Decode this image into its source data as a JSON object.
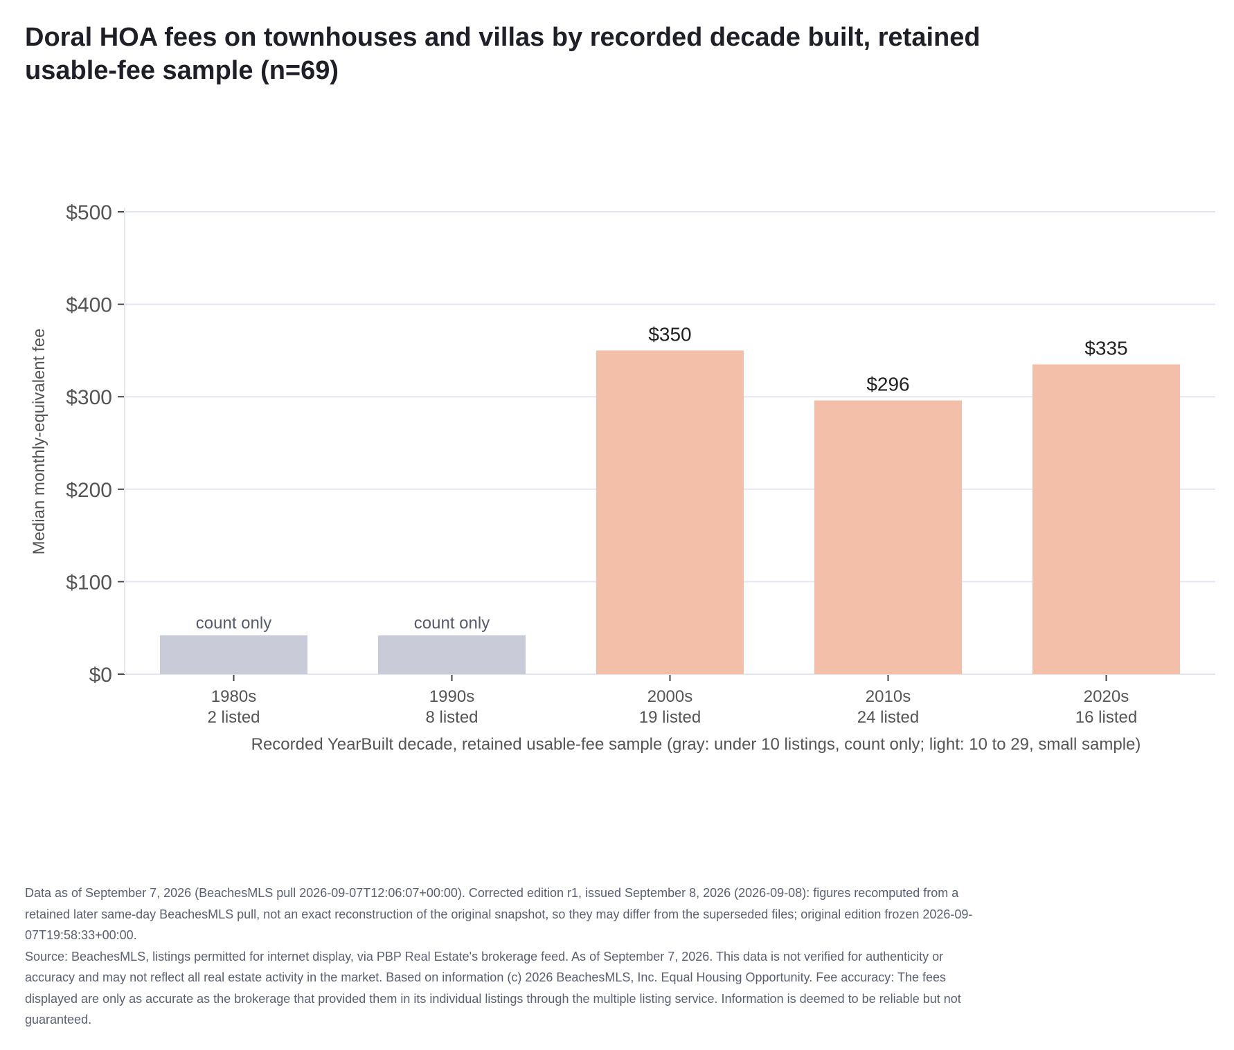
{
  "title": "Doral HOA fees on townhouses and villas by recorded decade built, retained usable-fee sample (n=69)",
  "colors": {
    "count_only_bar": "#c9ccd8",
    "small_sample_bar": "#f4bfa8",
    "gridline": "#e3e5f0",
    "axis_text": "#555555",
    "label_text": "#222222",
    "count_only_text": "#555a6e"
  },
  "chart_data": {
    "type": "bar",
    "title": "Doral HOA fees on townhouses and villas by recorded decade built, retained usable-fee sample (n=69)",
    "xlabel": "Recorded YearBuilt decade, retained usable-fee sample (gray: under 10 listings, count only; light: 10 to 29, small sample)",
    "ylabel": "Median monthly-equivalent fee",
    "ylim": [
      0,
      500
    ],
    "yticks": [
      0,
      100,
      200,
      300,
      400,
      500
    ],
    "ytick_labels": [
      "$0",
      "$100",
      "$200",
      "$300",
      "$400",
      "$500"
    ],
    "grid": true,
    "categories": [
      "1980s",
      "1990s",
      "2000s",
      "2010s",
      "2020s"
    ],
    "category_counts": [
      "2 listed",
      "8 listed",
      "19 listed",
      "24 listed",
      "16 listed"
    ],
    "values": [
      null,
      null,
      350,
      296,
      335
    ],
    "data_labels": [
      "count only",
      "count only",
      "$350",
      "$296",
      "$335"
    ],
    "tier": [
      "count only",
      "count only",
      "small sample",
      "small sample",
      "small sample"
    ],
    "count_only_bar_value": 42
  },
  "notes": {
    "data_as_of": "Data as of September 7, 2026 (BeachesMLS pull 2026-09-07T12:06:07+00:00). Corrected edition r1, issued September 8, 2026 (2026-09-08): figures recomputed from a retained later same-day BeachesMLS pull, not an exact reconstruction of the original snapshot, so they may differ from the superseded files; original edition frozen 2026-09-07T19:58:33+00:00.",
    "source": "Source: BeachesMLS, listings permitted for internet display, via PBP Real Estate's brokerage feed. As of September 7, 2026. This data is not verified for authenticity or accuracy and may not reflect all real estate activity in the market. Based on information (c) 2026 BeachesMLS, Inc. Equal Housing Opportunity. Fee accuracy: The fees displayed are only as accurate as the brokerage that provided them in its individual listings through the multiple listing service. Information is deemed to be reliable but not guaranteed."
  }
}
